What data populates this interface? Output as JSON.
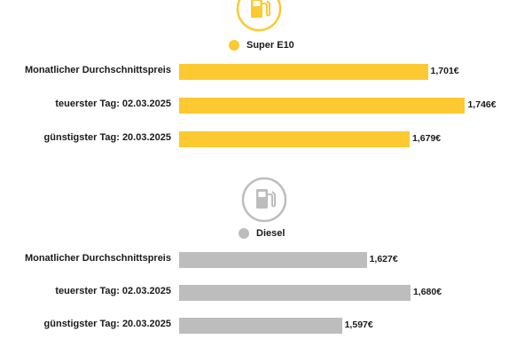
{
  "chart_data": [
    {
      "type": "bar",
      "orientation": "horizontal",
      "legend": "Super E10",
      "color": "#fcc931",
      "icon": "fuel-pump-icon",
      "categories": [
        "Monatlicher Durchschnittspreis",
        "teuerster Tag: 02.03.2025",
        "günstigster Tag: 20.03.2025"
      ],
      "values": [
        1.701,
        1.746,
        1.679
      ],
      "value_labels": [
        "1,701€",
        "1,746€",
        "1,679€"
      ]
    },
    {
      "type": "bar",
      "orientation": "horizontal",
      "legend": "Diesel",
      "color": "#bebdbd",
      "icon": "fuel-pump-icon",
      "categories": [
        "Monatlicher Durchschnittspreis",
        "teuerster Tag: 02.03.2025",
        "günstigster Tag: 20.03.2025"
      ],
      "values": [
        1.627,
        1.68,
        1.597
      ],
      "value_labels": [
        "1,627€",
        "1,680€",
        "1,597€"
      ]
    }
  ]
}
